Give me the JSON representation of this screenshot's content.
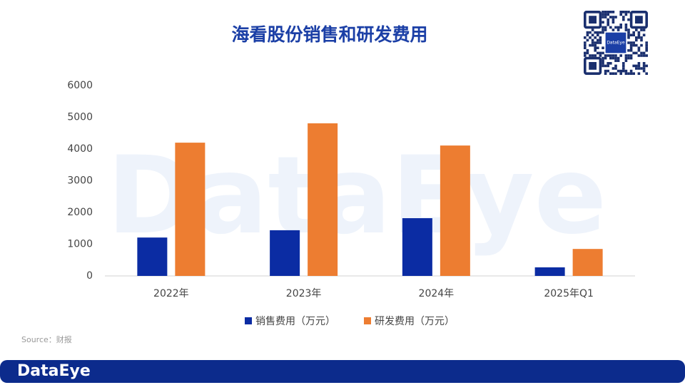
{
  "chart_data": {
    "type": "bar",
    "title": "海看股份销售和研发费用",
    "categories": [
      "2022年",
      "2023年",
      "2024年",
      "2025年Q1"
    ],
    "series": [
      {
        "name": "销售费用（万元）",
        "color": "#0b2ca3",
        "values": [
          1210,
          1440,
          1820,
          270
        ]
      },
      {
        "name": "研发费用（万元）",
        "color": "#ed7d31",
        "values": [
          4200,
          4810,
          4110,
          850
        ]
      }
    ],
    "ylim": [
      0,
      6000
    ],
    "yticks": [
      0,
      1000,
      2000,
      3000,
      4000,
      5000,
      6000
    ],
    "grid": false,
    "legend": "bottom",
    "source": "Source：财报"
  },
  "watermark": "DataEye",
  "footer": {
    "logo": "DataEye"
  },
  "qr_label": "DataEye"
}
